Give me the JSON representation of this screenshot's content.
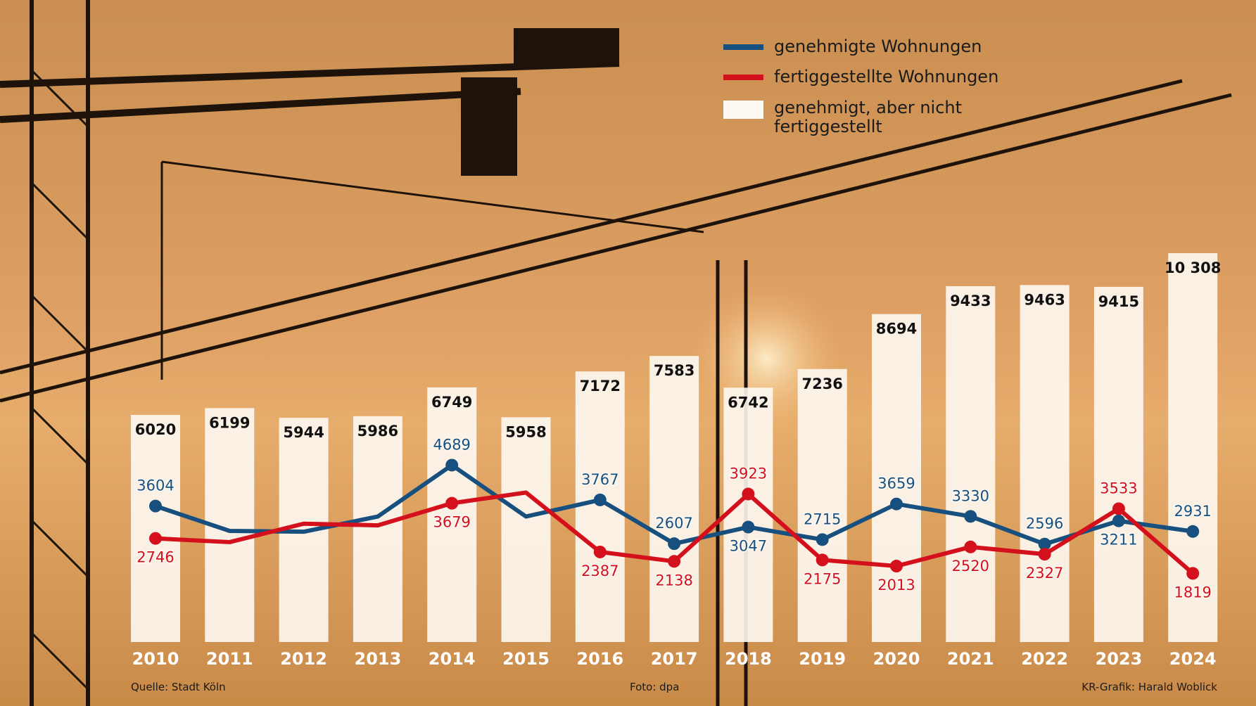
{
  "chart_data": {
    "type": "combo",
    "categories": [
      "2010",
      "2011",
      "2012",
      "2013",
      "2014",
      "2015",
      "2016",
      "2017",
      "2018",
      "2019",
      "2020",
      "2021",
      "2022",
      "2023",
      "2024"
    ],
    "series": [
      {
        "name": "genehmigt, aber nicht fertiggestellt",
        "type": "bar",
        "color": "#fdf8f2",
        "values": [
          6020,
          6199,
          5944,
          5986,
          6749,
          5958,
          7172,
          7583,
          6742,
          7236,
          8694,
          9433,
          9463,
          9415,
          10308
        ],
        "value_labels": [
          "6020",
          "6199",
          "5944",
          "5986",
          "6749",
          "5958",
          "7172",
          "7583",
          "6742",
          "7236",
          "8694",
          "9433",
          "9463",
          "9415",
          "10 308"
        ]
      },
      {
        "name": "genehmigte Wohnungen",
        "type": "line",
        "color": "#17507f",
        "values": [
          3604,
          2945,
          2924,
          3326,
          4689,
          3326,
          3767,
          2607,
          3047,
          2715,
          3659,
          3330,
          2596,
          3211,
          2931
        ],
        "value_labels": [
          "3604",
          null,
          null,
          null,
          "4689",
          null,
          "3767",
          "2607",
          "3047",
          "2715",
          "3659",
          "3330",
          "2596",
          "3211",
          "2931"
        ]
      },
      {
        "name": "fertiggestellte Wohnungen",
        "type": "line",
        "color": "#d3101c",
        "values": [
          2746,
          2648,
          3136,
          3093,
          3679,
          3962,
          2387,
          2138,
          3923,
          2175,
          2013,
          2520,
          2327,
          3533,
          1819
        ],
        "value_labels": [
          "2746",
          null,
          null,
          null,
          "3679",
          null,
          "2387",
          "2138",
          "3923",
          "2175",
          "2013",
          "2520",
          "2327",
          "3533",
          "1819"
        ]
      }
    ],
    "source": "Quelle: Stadt Köln",
    "photo": "Foto: dpa",
    "credit": "KR-Grafik: Harald Woblick"
  }
}
